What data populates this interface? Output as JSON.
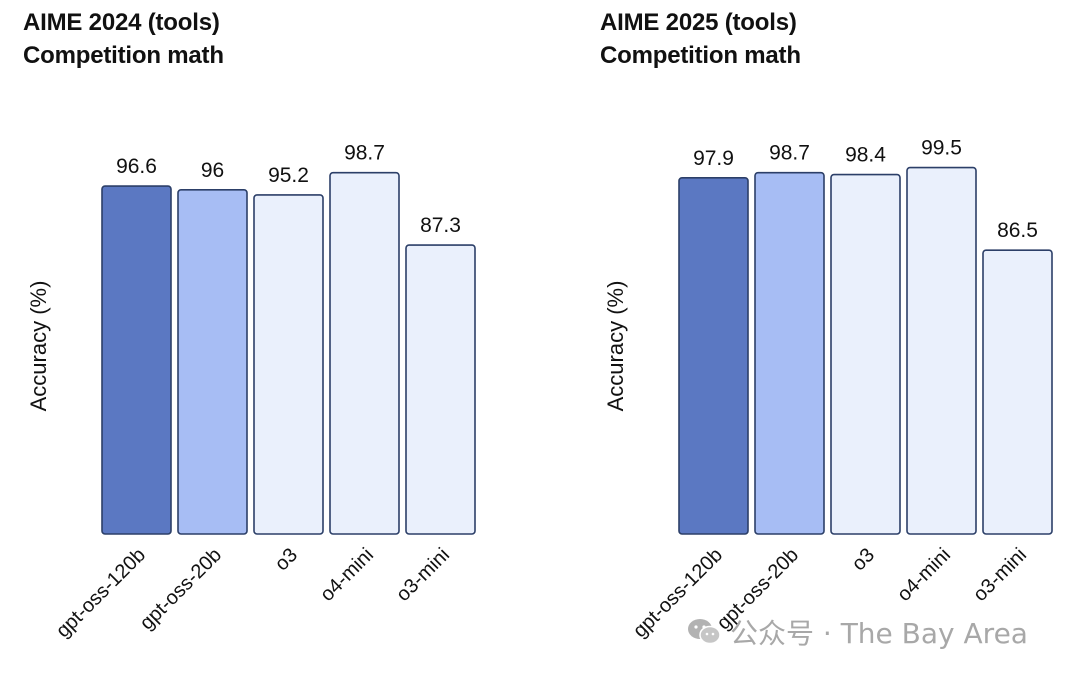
{
  "charts": [
    {
      "title_line1": "AIME 2024 (tools)",
      "title_line2": "Competition math"
    },
    {
      "title_line1": "AIME 2025 (tools)",
      "title_line2": "Competition math"
    }
  ],
  "watermark": "公众号 · The Bay Area",
  "colors": {
    "bar_dark": "#5b78c2",
    "bar_mid": "#a7bdf4",
    "bar_light": "#eaf0fc",
    "bar_stroke": "#2c3f68"
  },
  "chart_data": [
    {
      "type": "bar",
      "title": "AIME 2024 (tools)",
      "subtitle": "Competition math",
      "ylabel": "Accuracy (%)",
      "xlabel": "",
      "categories": [
        "gpt-oss-120b",
        "gpt-oss-20b",
        "o3",
        "o4-mini",
        "o3-mini"
      ],
      "values": [
        96.6,
        96,
        95.2,
        98.7,
        87.3
      ],
      "value_labels": [
        "96.6",
        "96",
        "95.2",
        "98.7",
        "87.3"
      ],
      "bar_colors": [
        "#5b78c2",
        "#a7bdf4",
        "#eaf0fc",
        "#eaf0fc",
        "#eaf0fc"
      ],
      "ylim": [
        0,
        100
      ],
      "grid": false,
      "legend": "none"
    },
    {
      "type": "bar",
      "title": "AIME 2025 (tools)",
      "subtitle": "Competition math",
      "ylabel": "Accuracy (%)",
      "xlabel": "",
      "categories": [
        "gpt-oss-120b",
        "gpt-oss-20b",
        "o3",
        "o4-mini",
        "o3-mini"
      ],
      "values": [
        97.9,
        98.7,
        98.4,
        99.5,
        86.5
      ],
      "value_labels": [
        "97.9",
        "98.7",
        "98.4",
        "99.5",
        "86.5"
      ],
      "bar_colors": [
        "#5b78c2",
        "#a7bdf4",
        "#eaf0fc",
        "#eaf0fc",
        "#eaf0fc"
      ],
      "ylim": [
        0,
        100
      ],
      "grid": false,
      "legend": "none"
    }
  ]
}
